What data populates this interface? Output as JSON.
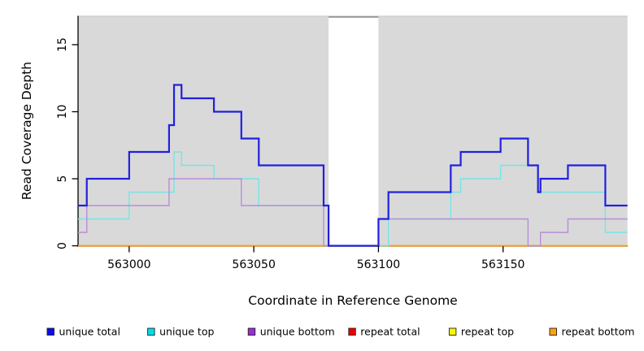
{
  "chart_data": {
    "type": "line",
    "subtype": "step-coverage",
    "title": "",
    "xlabel": "Coordinate in Reference Genome",
    "ylabel": "Read Coverage Depth",
    "xlim": [
      562979.5,
      563200
    ],
    "ylim": [
      0,
      17.15
    ],
    "x_ticks": [
      563000,
      563050,
      563100,
      563150
    ],
    "y_ticks": [
      0,
      5,
      10,
      15
    ],
    "grid": false,
    "legend_position": "bottom",
    "colors": {
      "plot_background": "#ffffff",
      "shaded_region": "#d9d9d9",
      "axis": "#000000",
      "region_top_edge": "#cfcfcf",
      "gap_top_edge": "#8f8f8f"
    },
    "shaded_regions": [
      {
        "from": 562979.5,
        "to": 563080
      },
      {
        "from": 563100,
        "to": 563199.9
      }
    ],
    "gap_region": {
      "from": 563080,
      "to": 563100
    },
    "series": [
      {
        "name": "repeat total",
        "color": "#e01a1a",
        "width": 1.5,
        "steps": [
          [
            562979.5,
            0
          ]
        ],
        "end": 563199.9
      },
      {
        "name": "repeat top",
        "color": "#f2f20a",
        "width": 1.5,
        "steps": [
          [
            562979.5,
            0
          ]
        ],
        "end": 563199.9
      },
      {
        "name": "repeat bottom",
        "color": "#ff9d1c",
        "width": 2,
        "steps": [
          [
            562979.5,
            0
          ]
        ],
        "end": 563199.9
      },
      {
        "name": "unique top",
        "color": "#74e6e6",
        "width": 1.4,
        "steps": [
          [
            562979.5,
            2
          ],
          [
            563000,
            4
          ],
          [
            563018,
            7
          ],
          [
            563021,
            6
          ],
          [
            563034,
            5
          ],
          [
            563052,
            3
          ],
          [
            563080,
            0
          ],
          [
            563104,
            2
          ],
          [
            563129,
            4
          ],
          [
            563133,
            5
          ],
          [
            563149,
            6
          ],
          [
            563164,
            4
          ],
          [
            563191,
            1
          ]
        ],
        "end": 563199.9
      },
      {
        "name": "unique bottom",
        "color": "#b78ed8",
        "width": 1.4,
        "steps": [
          [
            562979.5,
            1
          ],
          [
            562983,
            3
          ],
          [
            563016,
            5
          ],
          [
            563045,
            3
          ],
          [
            563078,
            0
          ],
          [
            563100,
            2
          ],
          [
            563160,
            0
          ],
          [
            563165,
            1
          ],
          [
            563176,
            2
          ]
        ],
        "end": 563199.9
      },
      {
        "name": "unique total",
        "color": "#2121dd",
        "width": 2.2,
        "steps": [
          [
            562979.5,
            3
          ],
          [
            562983,
            5
          ],
          [
            563000,
            7
          ],
          [
            563016,
            9
          ],
          [
            563018,
            12
          ],
          [
            563021,
            11
          ],
          [
            563034,
            10
          ],
          [
            563045,
            8
          ],
          [
            563052,
            6
          ],
          [
            563078,
            3
          ],
          [
            563080,
            0
          ],
          [
            563100,
            2
          ],
          [
            563104,
            4
          ],
          [
            563129,
            6
          ],
          [
            563133,
            7
          ],
          [
            563149,
            8
          ],
          [
            563160,
            6
          ],
          [
            563164,
            4
          ],
          [
            563165,
            5
          ],
          [
            563176,
            6
          ],
          [
            563191,
            3
          ]
        ],
        "end": 563199.9
      }
    ],
    "legend": [
      {
        "label": "unique total",
        "color": "#0c0cec"
      },
      {
        "label": "unique top",
        "color": "#00dde8"
      },
      {
        "label": "unique bottom",
        "color": "#9a2fd4"
      },
      {
        "label": "repeat total",
        "color": "#ee0000"
      },
      {
        "label": "repeat top",
        "color": "#f6f608"
      },
      {
        "label": "repeat bottom",
        "color": "#ffa10d"
      }
    ]
  }
}
